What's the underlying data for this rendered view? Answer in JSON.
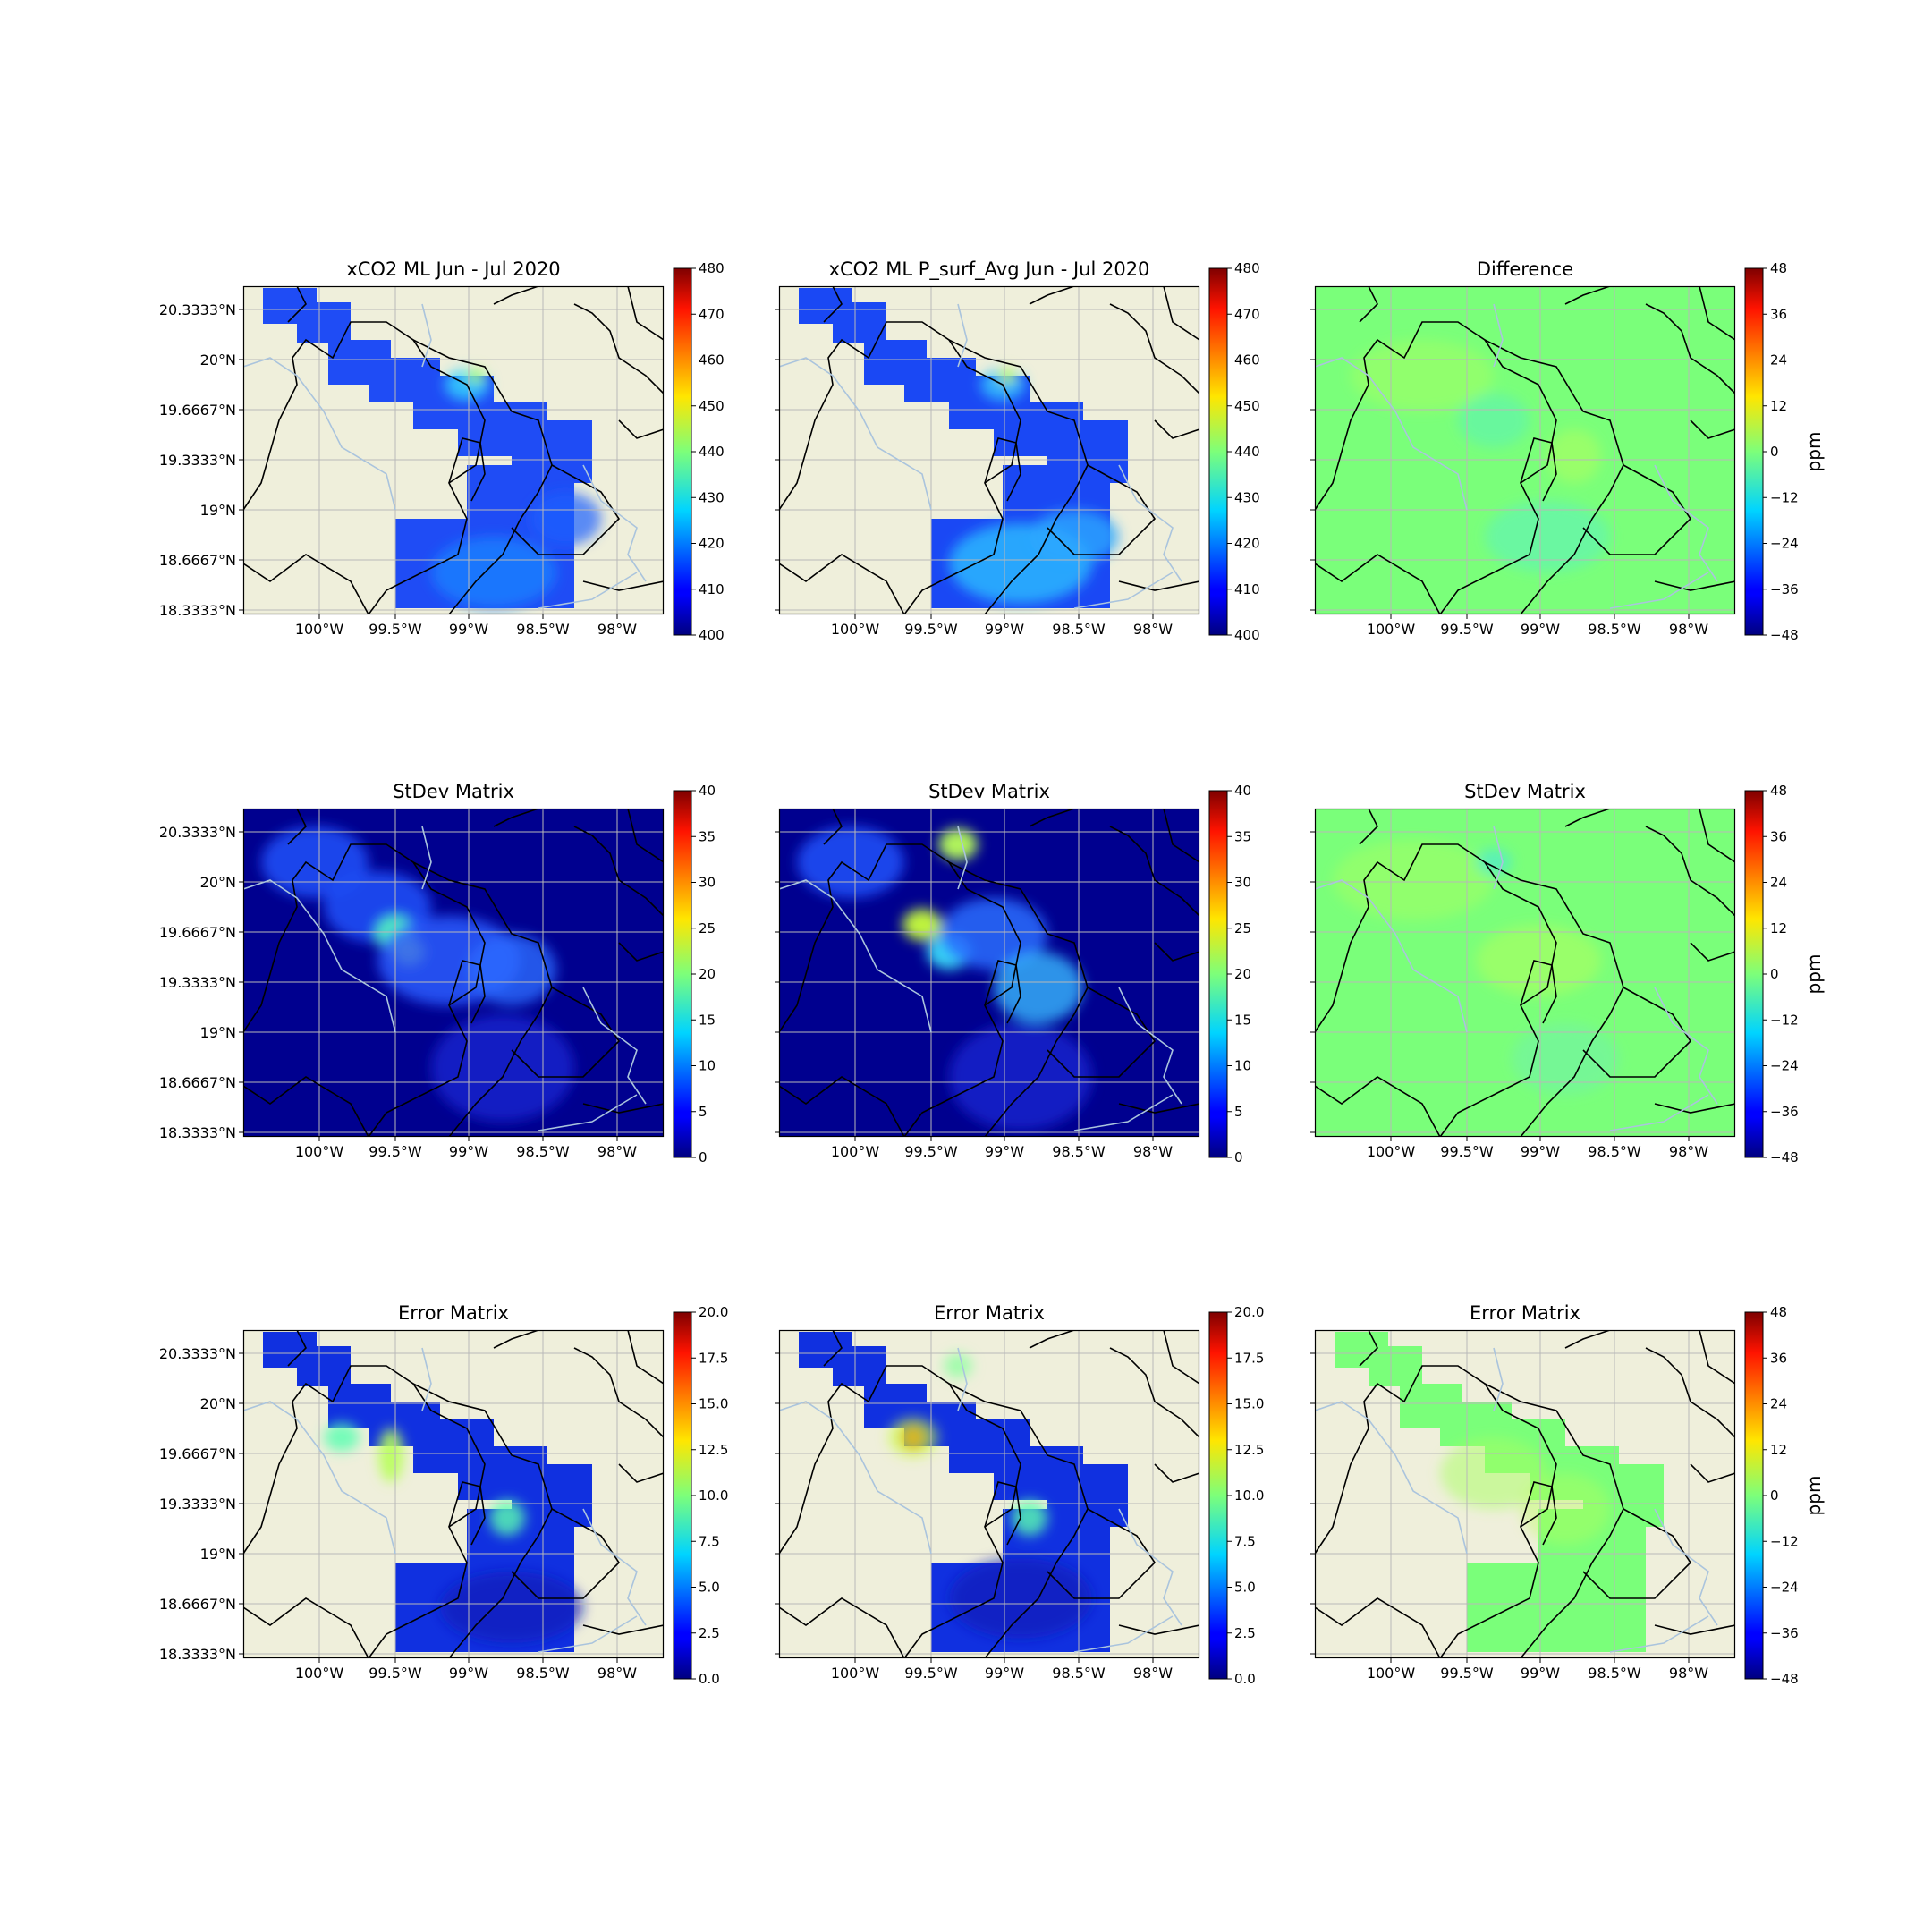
{
  "figure": {
    "lon_ticks": [
      "100°W",
      "99.5°W",
      "99°W",
      "98.5°W",
      "98°W"
    ],
    "lat_ticks": [
      "20.3333°N",
      "20°N",
      "19.6667°N",
      "19.3333°N",
      "19°N",
      "18.6667°N",
      "18.3333°N"
    ],
    "colormap": "jet",
    "land_color": "#efefdb",
    "river_color": "#aac4dd",
    "panels": [
      {
        "title": "xCO2 ML Jun - Jul 2020",
        "colorbar": {
          "min": 400,
          "max": 480,
          "ticks": [
            "480",
            "470",
            "460",
            "450",
            "440",
            "430",
            "420",
            "410",
            "400"
          ],
          "label": ""
        }
      },
      {
        "title": "xCO2 ML P_surf_Avg Jun - Jul 2020",
        "colorbar": {
          "min": 400,
          "max": 480,
          "ticks": [
            "480",
            "470",
            "460",
            "450",
            "440",
            "430",
            "420",
            "410",
            "400"
          ],
          "label": ""
        }
      },
      {
        "title": "Difference",
        "colorbar": {
          "min": -48,
          "max": 48,
          "ticks": [
            "48",
            "36",
            "24",
            "12",
            "0",
            "−12",
            "−24",
            "−36",
            "−48"
          ],
          "label": "ppm"
        }
      },
      {
        "title": "StDev Matrix",
        "colorbar": {
          "min": 0,
          "max": 40,
          "ticks": [
            "40",
            "35",
            "30",
            "25",
            "20",
            "15",
            "10",
            "5",
            "0"
          ],
          "label": ""
        }
      },
      {
        "title": "StDev Matrix",
        "colorbar": {
          "min": 0,
          "max": 40,
          "ticks": [
            "40",
            "35",
            "30",
            "25",
            "20",
            "15",
            "10",
            "5",
            "0"
          ],
          "label": ""
        }
      },
      {
        "title": "StDev Matrix",
        "colorbar": {
          "min": -48,
          "max": 48,
          "ticks": [
            "48",
            "36",
            "24",
            "12",
            "0",
            "−12",
            "−24",
            "−36",
            "−48"
          ],
          "label": "ppm"
        }
      },
      {
        "title": "Error Matrix",
        "colorbar": {
          "min": 0,
          "max": 20,
          "ticks": [
            "20.0",
            "17.5",
            "15.0",
            "12.5",
            "10.0",
            "7.5",
            "5.0",
            "2.5",
            "0.0"
          ],
          "label": ""
        }
      },
      {
        "title": "Error Matrix",
        "colorbar": {
          "min": 0,
          "max": 20,
          "ticks": [
            "20.0",
            "17.5",
            "15.0",
            "12.5",
            "10.0",
            "7.5",
            "5.0",
            "2.5",
            "0.0"
          ],
          "label": ""
        }
      },
      {
        "title": "Error Matrix",
        "colorbar": {
          "min": -48,
          "max": 48,
          "ticks": [
            "48",
            "36",
            "24",
            "12",
            "0",
            "−12",
            "−24",
            "−36",
            "−48"
          ],
          "label": "ppm"
        }
      }
    ]
  }
}
